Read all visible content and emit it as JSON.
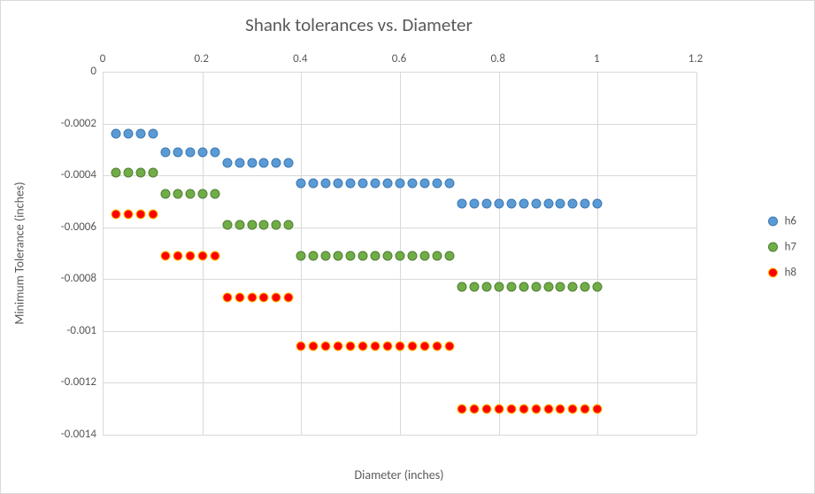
{
  "chart": {
    "title": "Shank tolerances vs. Diameter",
    "x_axis_label": "Diameter (inches)",
    "y_axis_label": "Minimum Tolerance (inches)",
    "title_color": "#595959",
    "title_fontsize": 21,
    "axis_label_fontsize": 14,
    "tick_fontsize": 13,
    "background_color": "#ffffff",
    "grid_color": "#d9d9d9",
    "border_color": "#d9d9d9",
    "xlim": [
      0,
      1.2
    ],
    "ylim": [
      -0.0014,
      0
    ],
    "xticks": [
      0,
      0.2,
      0.4,
      0.6,
      0.8,
      1,
      1.2
    ],
    "yticks": [
      0,
      -0.0002,
      -0.0004,
      -0.0006,
      -0.0008,
      -0.001,
      -0.0012,
      -0.0014
    ],
    "marker_size": 11,
    "series": [
      {
        "name": "h6",
        "fill_color": "#5b9bd5",
        "border_color": "#3e78b3",
        "x": [
          0.025,
          0.05,
          0.075,
          0.1,
          0.125,
          0.15,
          0.175,
          0.2,
          0.225,
          0.25,
          0.275,
          0.3,
          0.325,
          0.35,
          0.375,
          0.4,
          0.425,
          0.45,
          0.475,
          0.5,
          0.525,
          0.55,
          0.575,
          0.6,
          0.625,
          0.65,
          0.675,
          0.7,
          0.725,
          0.75,
          0.775,
          0.8,
          0.825,
          0.85,
          0.875,
          0.9,
          0.925,
          0.95,
          0.975,
          1.0
        ],
        "y": [
          -0.00024,
          -0.00024,
          -0.00024,
          -0.00024,
          -0.00031,
          -0.00031,
          -0.00031,
          -0.00031,
          -0.00031,
          -0.00035,
          -0.00035,
          -0.00035,
          -0.00035,
          -0.00035,
          -0.00035,
          -0.00043,
          -0.00043,
          -0.00043,
          -0.00043,
          -0.00043,
          -0.00043,
          -0.00043,
          -0.00043,
          -0.00043,
          -0.00043,
          -0.00043,
          -0.00043,
          -0.00043,
          -0.00051,
          -0.00051,
          -0.00051,
          -0.00051,
          -0.00051,
          -0.00051,
          -0.00051,
          -0.00051,
          -0.00051,
          -0.00051,
          -0.00051,
          -0.00051
        ]
      },
      {
        "name": "h7",
        "fill_color": "#70ad47",
        "border_color": "#507e32",
        "x": [
          0.025,
          0.05,
          0.075,
          0.1,
          0.125,
          0.15,
          0.175,
          0.2,
          0.225,
          0.25,
          0.275,
          0.3,
          0.325,
          0.35,
          0.375,
          0.4,
          0.425,
          0.45,
          0.475,
          0.5,
          0.525,
          0.55,
          0.575,
          0.6,
          0.625,
          0.65,
          0.675,
          0.7,
          0.725,
          0.75,
          0.775,
          0.8,
          0.825,
          0.85,
          0.875,
          0.9,
          0.925,
          0.95,
          0.975,
          1.0
        ],
        "y": [
          -0.00039,
          -0.00039,
          -0.00039,
          -0.00039,
          -0.00047,
          -0.00047,
          -0.00047,
          -0.00047,
          -0.00047,
          -0.00059,
          -0.00059,
          -0.00059,
          -0.00059,
          -0.00059,
          -0.00059,
          -0.00071,
          -0.00071,
          -0.00071,
          -0.00071,
          -0.00071,
          -0.00071,
          -0.00071,
          -0.00071,
          -0.00071,
          -0.00071,
          -0.00071,
          -0.00071,
          -0.00071,
          -0.00083,
          -0.00083,
          -0.00083,
          -0.00083,
          -0.00083,
          -0.00083,
          -0.00083,
          -0.00083,
          -0.00083,
          -0.00083,
          -0.00083,
          -0.00083
        ]
      },
      {
        "name": "h8",
        "fill_color": "#ff0000",
        "border_color": "#ffc000",
        "x": [
          0.025,
          0.05,
          0.075,
          0.1,
          0.125,
          0.15,
          0.175,
          0.2,
          0.225,
          0.25,
          0.275,
          0.3,
          0.325,
          0.35,
          0.375,
          0.4,
          0.425,
          0.45,
          0.475,
          0.5,
          0.525,
          0.55,
          0.575,
          0.6,
          0.625,
          0.65,
          0.675,
          0.7,
          0.725,
          0.75,
          0.775,
          0.8,
          0.825,
          0.85,
          0.875,
          0.9,
          0.925,
          0.95,
          0.975,
          1.0
        ],
        "y": [
          -0.00055,
          -0.00055,
          -0.00055,
          -0.00055,
          -0.00071,
          -0.00071,
          -0.00071,
          -0.00071,
          -0.00071,
          -0.00087,
          -0.00087,
          -0.00087,
          -0.00087,
          -0.00087,
          -0.00087,
          -0.00106,
          -0.00106,
          -0.00106,
          -0.00106,
          -0.00106,
          -0.00106,
          -0.00106,
          -0.00106,
          -0.00106,
          -0.00106,
          -0.00106,
          -0.00106,
          -0.00106,
          -0.0013,
          -0.0013,
          -0.0013,
          -0.0013,
          -0.0013,
          -0.0013,
          -0.0013,
          -0.0013,
          -0.0013,
          -0.0013,
          -0.0013,
          -0.0013
        ]
      }
    ],
    "legend": {
      "items": [
        {
          "label": "h6",
          "fill": "#5b9bd5",
          "border": "#3e78b3"
        },
        {
          "label": "h7",
          "fill": "#70ad47",
          "border": "#507e32"
        },
        {
          "label": "h8",
          "fill": "#ff0000",
          "border": "#ffc000"
        }
      ]
    }
  }
}
